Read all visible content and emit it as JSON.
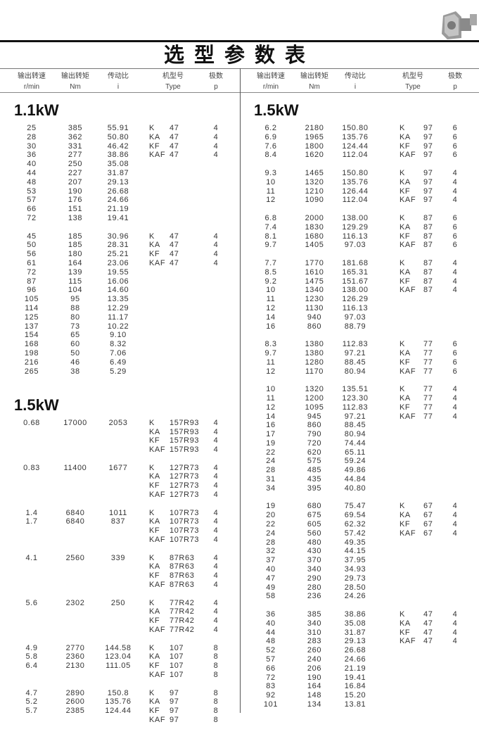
{
  "title": "选型参数表",
  "header": {
    "columns": [
      {
        "cn": "输出转速",
        "en": "r/min"
      },
      {
        "cn": "输出转矩",
        "en": "Nm"
      },
      {
        "cn": "传动比",
        "en": "i"
      },
      {
        "cn": "机型号",
        "en": "Type"
      },
      {
        "cn": "极数",
        "en": "p"
      }
    ]
  },
  "left": {
    "sections": [
      {
        "title": "1.1kW",
        "groups": [
          [
            [
              "25",
              "385",
              "55.91",
              "K",
              "47",
              "4"
            ],
            [
              "28",
              "362",
              "50.80",
              "KA",
              "47",
              "4"
            ],
            [
              "30",
              "331",
              "46.42",
              "KF",
              "47",
              "4"
            ],
            [
              "36",
              "277",
              "38.86",
              "KAF",
              "47",
              "4"
            ],
            [
              "40",
              "250",
              "35.08",
              "",
              "",
              ""
            ],
            [
              "44",
              "227",
              "31.87",
              "",
              "",
              ""
            ],
            [
              "48",
              "207",
              "29.13",
              "",
              "",
              ""
            ],
            [
              "53",
              "190",
              "26.68",
              "",
              "",
              ""
            ],
            [
              "57",
              "176",
              "24.66",
              "",
              "",
              ""
            ],
            [
              "66",
              "151",
              "21.19",
              "",
              "",
              ""
            ],
            [
              "72",
              "138",
              "19.41",
              "",
              "",
              ""
            ]
          ],
          [
            [
              "45",
              "185",
              "30.96",
              "K",
              "47",
              "4"
            ],
            [
              "50",
              "185",
              "28.31",
              "KA",
              "47",
              "4"
            ],
            [
              "56",
              "180",
              "25.21",
              "KF",
              "47",
              "4"
            ],
            [
              "61",
              "164",
              "23.06",
              "KAF",
              "47",
              "4"
            ],
            [
              "72",
              "139",
              "19.55",
              "",
              "",
              ""
            ],
            [
              "87",
              "115",
              "16.06",
              "",
              "",
              ""
            ],
            [
              "96",
              "104",
              "14.60",
              "",
              "",
              ""
            ],
            [
              "105",
              "95",
              "13.35",
              "",
              "",
              ""
            ],
            [
              "114",
              "88",
              "12.29",
              "",
              "",
              ""
            ],
            [
              "125",
              "80",
              "11.17",
              "",
              "",
              ""
            ],
            [
              "137",
              "73",
              "10.22",
              "",
              "",
              ""
            ],
            [
              "154",
              "65",
              "9.10",
              "",
              "",
              ""
            ],
            [
              "168",
              "60",
              "8.32",
              "",
              "",
              ""
            ],
            [
              "198",
              "50",
              "7.06",
              "",
              "",
              ""
            ],
            [
              "216",
              "46",
              "6.49",
              "",
              "",
              ""
            ],
            [
              "265",
              "38",
              "5.29",
              "",
              "",
              ""
            ]
          ]
        ]
      },
      {
        "title": "1.5kW",
        "groups": [
          [
            [
              "0.68",
              "17000",
              "2053",
              "K",
              "157R93",
              "4"
            ],
            [
              "",
              "",
              "",
              "KA",
              "157R93",
              "4"
            ],
            [
              "",
              "",
              "",
              "KF",
              "157R93",
              "4"
            ],
            [
              "",
              "",
              "",
              "KAF",
              "157R93",
              "4"
            ]
          ],
          [
            [
              "0.83",
              "11400",
              "1677",
              "K",
              "127R73",
              "4"
            ],
            [
              "",
              "",
              "",
              "KA",
              "127R73",
              "4"
            ],
            [
              "",
              "",
              "",
              "KF",
              "127R73",
              "4"
            ],
            [
              "",
              "",
              "",
              "KAF",
              "127R73",
              "4"
            ]
          ],
          [
            [
              "1.4",
              "6840",
              "1011",
              "K",
              "107R73",
              "4"
            ],
            [
              "1.7",
              "6840",
              "837",
              "KA",
              "107R73",
              "4"
            ],
            [
              "",
              "",
              "",
              "KF",
              "107R73",
              "4"
            ],
            [
              "",
              "",
              "",
              "KAF",
              "107R73",
              "4"
            ]
          ],
          [
            [
              "4.1",
              "2560",
              "339",
              "K",
              "87R63",
              "4"
            ],
            [
              "",
              "",
              "",
              "KA",
              "87R63",
              "4"
            ],
            [
              "",
              "",
              "",
              "KF",
              "87R63",
              "4"
            ],
            [
              "",
              "",
              "",
              "KAF",
              "87R63",
              "4"
            ]
          ],
          [
            [
              "5.6",
              "2302",
              "250",
              "K",
              "77R42",
              "4"
            ],
            [
              "",
              "",
              "",
              "KA",
              "77R42",
              "4"
            ],
            [
              "",
              "",
              "",
              "KF",
              "77R42",
              "4"
            ],
            [
              "",
              "",
              "",
              "KAF",
              "77R42",
              "4"
            ]
          ],
          [
            [
              "4.9",
              "2770",
              "144.58",
              "K",
              "107",
              "8"
            ],
            [
              "5.8",
              "2360",
              "123.04",
              "KA",
              "107",
              "8"
            ],
            [
              "6.4",
              "2130",
              "111.05",
              "KF",
              "107",
              "8"
            ],
            [
              "",
              "",
              "",
              "KAF",
              "107",
              "8"
            ]
          ],
          [
            [
              "4.7",
              "2890",
              "150.8",
              "K",
              "97",
              "8"
            ],
            [
              "5.2",
              "2600",
              "135.76",
              "KA",
              "97",
              "8"
            ],
            [
              "5.7",
              "2385",
              "124.44",
              "KF",
              "97",
              "8"
            ],
            [
              "",
              "",
              "",
              "KAF",
              "97",
              "8"
            ]
          ]
        ]
      }
    ]
  },
  "right": {
    "sections": [
      {
        "title": "1.5kW",
        "groups": [
          [
            [
              "6.2",
              "2180",
              "150.80",
              "K",
              "97",
              "6"
            ],
            [
              "6.9",
              "1965",
              "135.76",
              "KA",
              "97",
              "6"
            ],
            [
              "7.6",
              "1800",
              "124.44",
              "KF",
              "97",
              "6"
            ],
            [
              "8.4",
              "1620",
              "112.04",
              "KAF",
              "97",
              "6"
            ]
          ],
          [
            [
              "9.3",
              "1465",
              "150.80",
              "K",
              "97",
              "4"
            ],
            [
              "10",
              "1320",
              "135.76",
              "KA",
              "97",
              "4"
            ],
            [
              "11",
              "1210",
              "126.44",
              "KF",
              "97",
              "4"
            ],
            [
              "12",
              "1090",
              "112.04",
              "KAF",
              "97",
              "4"
            ]
          ],
          [
            [
              "6.8",
              "2000",
              "138.00",
              "K",
              "87",
              "6"
            ],
            [
              "7.4",
              "1830",
              "129.29",
              "KA",
              "87",
              "6"
            ],
            [
              "8.1",
              "1680",
              "116.13",
              "KF",
              "87",
              "6"
            ],
            [
              "9.7",
              "1405",
              "97.03",
              "KAF",
              "87",
              "6"
            ]
          ],
          [
            [
              "7.7",
              "1770",
              "181.68",
              "K",
              "87",
              "4"
            ],
            [
              "8.5",
              "1610",
              "165.31",
              "KA",
              "87",
              "4"
            ],
            [
              "9.2",
              "1475",
              "151.67",
              "KF",
              "87",
              "4"
            ],
            [
              "10",
              "1340",
              "138.00",
              "KAF",
              "87",
              "4"
            ],
            [
              "11",
              "1230",
              "126.29",
              "",
              "",
              ""
            ],
            [
              "12",
              "1130",
              "116.13",
              "",
              "",
              ""
            ],
            [
              "14",
              "940",
              "97.03",
              "",
              "",
              ""
            ],
            [
              "16",
              "860",
              "88.79",
              "",
              "",
              ""
            ]
          ],
          [
            [
              "8.3",
              "1380",
              "112.83",
              "K",
              "77",
              "6"
            ],
            [
              "9.7",
              "1380",
              "97.21",
              "KA",
              "77",
              "6"
            ],
            [
              "11",
              "1280",
              "88.45",
              "KF",
              "77",
              "6"
            ],
            [
              "12",
              "1170",
              "80.94",
              "KAF",
              "77",
              "6"
            ]
          ],
          [
            [
              "10",
              "1320",
              "135.51",
              "K",
              "77",
              "4"
            ],
            [
              "11",
              "1200",
              "123.30",
              "KA",
              "77",
              "4"
            ],
            [
              "12",
              "1095",
              "112.83",
              "KF",
              "77",
              "4"
            ],
            [
              "14",
              "945",
              "97.21",
              "KAF",
              "77",
              "4"
            ],
            [
              "16",
              "860",
              "88.45",
              "",
              "",
              ""
            ],
            [
              "17",
              "790",
              "80.94",
              "",
              "",
              ""
            ],
            [
              "19",
              "720",
              "74.44",
              "",
              "",
              ""
            ],
            [
              "22",
              "620",
              "65.11",
              "",
              "",
              ""
            ],
            [
              "24",
              "575",
              "59.24",
              "",
              "",
              ""
            ],
            [
              "28",
              "485",
              "49.86",
              "",
              "",
              ""
            ],
            [
              "31",
              "435",
              "44.84",
              "",
              "",
              ""
            ],
            [
              "34",
              "395",
              "40.80",
              "",
              "",
              ""
            ]
          ],
          [
            [
              "19",
              "680",
              "75.47",
              "K",
              "67",
              "4"
            ],
            [
              "20",
              "675",
              "69.54",
              "KA",
              "67",
              "4"
            ],
            [
              "22",
              "605",
              "62.32",
              "KF",
              "67",
              "4"
            ],
            [
              "24",
              "560",
              "57.42",
              "KAF",
              "67",
              "4"
            ],
            [
              "28",
              "480",
              "49.35",
              "",
              "",
              ""
            ],
            [
              "32",
              "430",
              "44.15",
              "",
              "",
              ""
            ],
            [
              "37",
              "370",
              "37.95",
              "",
              "",
              ""
            ],
            [
              "40",
              "340",
              "34.93",
              "",
              "",
              ""
            ],
            [
              "47",
              "290",
              "29.73",
              "",
              "",
              ""
            ],
            [
              "49",
              "280",
              "28.50",
              "",
              "",
              ""
            ],
            [
              "58",
              "236",
              "24.26",
              "",
              "",
              ""
            ]
          ],
          [
            [
              "36",
              "385",
              "38.86",
              "K",
              "47",
              "4"
            ],
            [
              "40",
              "340",
              "35.08",
              "KA",
              "47",
              "4"
            ],
            [
              "44",
              "310",
              "31.87",
              "KF",
              "47",
              "4"
            ],
            [
              "48",
              "283",
              "29.13",
              "KAF",
              "47",
              "4"
            ],
            [
              "52",
              "260",
              "26.68",
              "",
              "",
              ""
            ],
            [
              "57",
              "240",
              "24.66",
              "",
              "",
              ""
            ],
            [
              "66",
              "206",
              "21.19",
              "",
              "",
              ""
            ],
            [
              "72",
              "190",
              "19.41",
              "",
              "",
              ""
            ],
            [
              "83",
              "164",
              "16.84",
              "",
              "",
              ""
            ],
            [
              "92",
              "148",
              "15.20",
              "",
              "",
              ""
            ],
            [
              "101",
              "134",
              "13.81",
              "",
              "",
              ""
            ]
          ]
        ]
      }
    ]
  },
  "icons": {
    "product_image": "gear-reducer-icon"
  }
}
